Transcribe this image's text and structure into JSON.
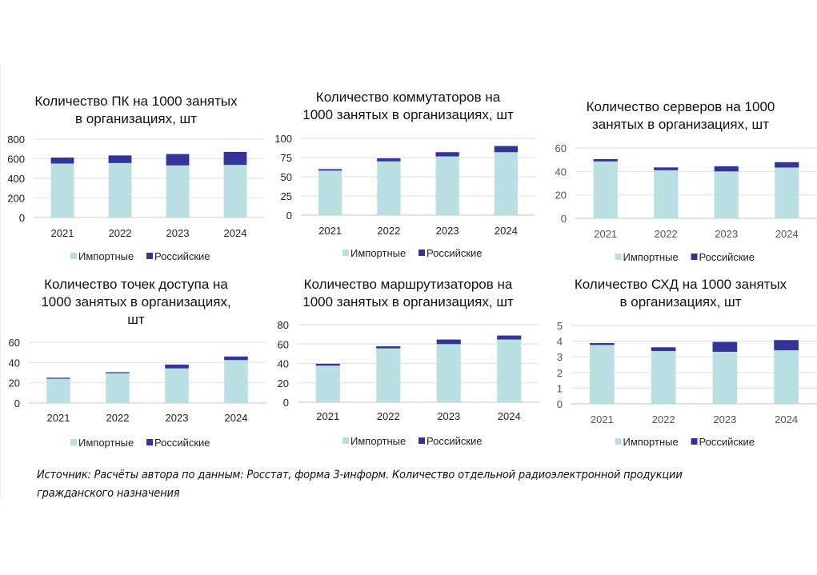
{
  "colors": {
    "imports": "#b9dfe2",
    "russian": "#33339a",
    "grid": "#e4e4e4",
    "axis": "#d9d9d9"
  },
  "legend": {
    "imports": "Импортные",
    "russian": "Российские"
  },
  "source": "Источник: Расчёты автора по данным:  Росстат, форма 3-информ. Количество отдельной радиоэлектронной продукции гражданского назначения",
  "chart_data": [
    {
      "type": "bar",
      "stacked": true,
      "title": [
        "Количество ПК на 1000 занятых",
        "в организациях, шт"
      ],
      "categories": [
        "2021",
        "2022",
        "2023",
        "2024"
      ],
      "series": [
        {
          "name": "Импортные",
          "values": [
            551,
            556,
            532,
            537
          ]
        },
        {
          "name": "Российские",
          "values": [
            61,
            78,
            116,
            133
          ]
        }
      ],
      "ylim": [
        0,
        800
      ],
      "yticks": [
        0,
        200,
        400,
        600,
        800
      ],
      "grid": true,
      "legend": "bottom",
      "xlabel": "",
      "ylabel": ""
    },
    {
      "type": "bar",
      "stacked": true,
      "title": [
        "Количество коммутаторов на",
        "1000 занятых в организациях, шт"
      ],
      "categories": [
        "2021",
        "2022",
        "2023",
        "2024"
      ],
      "series": [
        {
          "name": "Импортные",
          "values": [
            58,
            70,
            76.5,
            82
          ]
        },
        {
          "name": "Российские",
          "values": [
            2,
            4,
            5.5,
            8
          ]
        }
      ],
      "ylim": [
        0,
        100
      ],
      "yticks": [
        0,
        25,
        50,
        75,
        100
      ],
      "grid": true,
      "legend": "bottom",
      "xlabel": "",
      "ylabel": ""
    },
    {
      "type": "bar",
      "stacked": true,
      "title": [
        "Количество серверов на 1000",
        "занятых в организациях, шт"
      ],
      "categories": [
        "2021",
        "2022",
        "2023",
        "2024"
      ],
      "series": [
        {
          "name": "Импортные",
          "values": [
            48.5,
            41,
            40,
            43.3
          ]
        },
        {
          "name": "Российские",
          "values": [
            2,
            2.4,
            4.4,
            4.6
          ]
        }
      ],
      "ylim": [
        0,
        60
      ],
      "yticks": [
        0,
        20,
        40,
        60
      ],
      "grid": true,
      "legend": "bottom",
      "xlabel": "",
      "ylabel": ""
    },
    {
      "type": "bar",
      "stacked": true,
      "title": [
        "Количество точек доступа на",
        "1000 занятых в организациях,",
        "шт"
      ],
      "categories": [
        "2021",
        "2022",
        "2023",
        "2024"
      ],
      "series": [
        {
          "name": "Импортные",
          "values": [
            24,
            29.5,
            34.2,
            42.4
          ]
        },
        {
          "name": "Российские",
          "values": [
            1,
            1,
            3.8,
            3.6
          ]
        }
      ],
      "ylim": [
        0,
        60
      ],
      "yticks": [
        0,
        20,
        40,
        60
      ],
      "grid": true,
      "legend": "bottom",
      "xlabel": "",
      "ylabel": ""
    },
    {
      "type": "bar",
      "stacked": true,
      "title": [
        "Количество маршрутизаторов на",
        "1000 занятых в организациях, шт"
      ],
      "categories": [
        "2021",
        "2022",
        "2023",
        "2024"
      ],
      "series": [
        {
          "name": "Импортные",
          "values": [
            37.8,
            55.6,
            60,
            64.7
          ]
        },
        {
          "name": "Российские",
          "values": [
            1.9,
            2.2,
            4.7,
            4.1
          ]
        }
      ],
      "ylim": [
        0,
        80
      ],
      "yticks": [
        0,
        20,
        40,
        60,
        80
      ],
      "grid": true,
      "legend": "bottom",
      "xlabel": "",
      "ylabel": ""
    },
    {
      "type": "bar",
      "stacked": true,
      "title": [
        "Количество СХД на 1000 занятых",
        "в организациях, шт"
      ],
      "categories": [
        "2021",
        "2022",
        "2023",
        "2024"
      ],
      "series": [
        {
          "name": "Импортные",
          "values": [
            3.76,
            3.37,
            3.32,
            3.42
          ]
        },
        {
          "name": "Российские",
          "values": [
            0.12,
            0.24,
            0.63,
            0.65
          ]
        }
      ],
      "ylim": [
        0,
        5
      ],
      "yticks": [
        0,
        1,
        2,
        3,
        4,
        5
      ],
      "grid": true,
      "legend": "bottom",
      "xlabel": "",
      "ylabel": ""
    }
  ]
}
